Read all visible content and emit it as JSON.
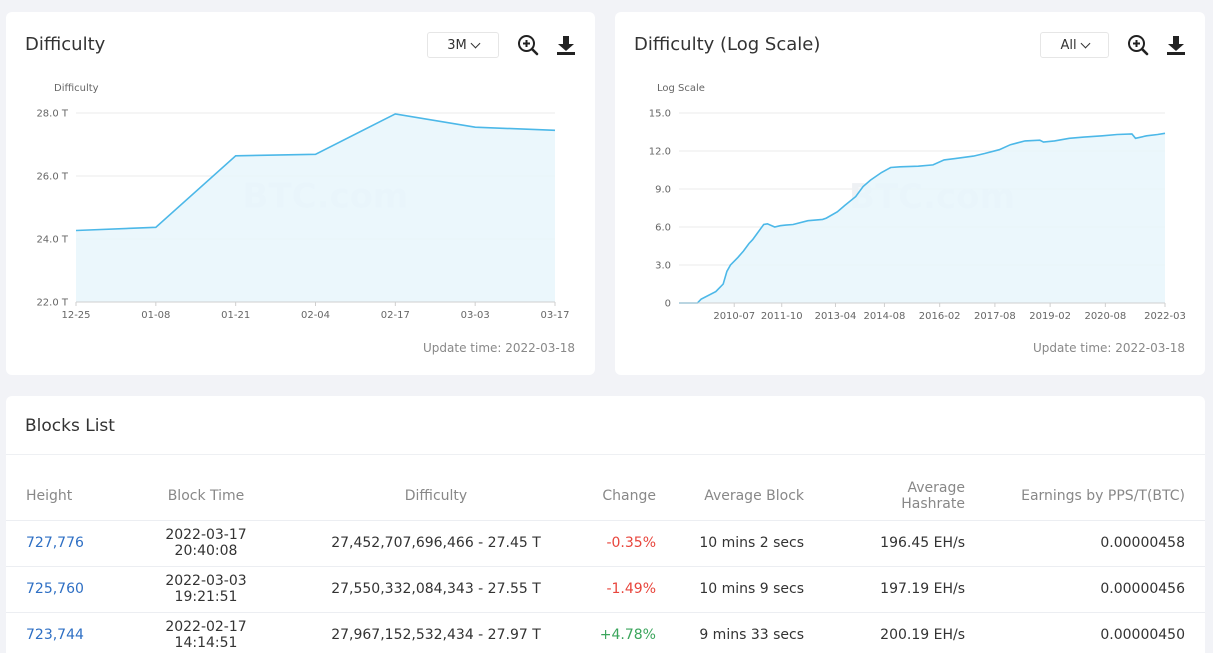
{
  "difficulty_card": {
    "title": "Difficulty",
    "range": "3M",
    "update_time": "Update time: 2022-03-18"
  },
  "log_card": {
    "title": "Difficulty (Log Scale)",
    "range": "All",
    "update_time": "Update time: 2022-03-18"
  },
  "watermark": "BTC.com",
  "chart_data": [
    {
      "type": "area",
      "title": "Difficulty",
      "ylabel": "Difficulty",
      "xlabel": "",
      "categories": [
        "12-25",
        "01-08",
        "01-21",
        "02-04",
        "02-17",
        "03-03",
        "03-17"
      ],
      "x": [
        0,
        1,
        2,
        3,
        4,
        5,
        6
      ],
      "values": [
        24.27,
        24.37,
        26.64,
        26.69,
        27.97,
        27.55,
        27.45
      ],
      "y_ticks": [
        "22.0 T",
        "24.0 T",
        "26.0 T",
        "28.0 T"
      ],
      "y_tick_values": [
        22,
        24,
        26,
        28
      ],
      "ylim": [
        22,
        28
      ],
      "grid": true,
      "color": "#4cb8e8",
      "fill": "#e8f6fc"
    },
    {
      "type": "area",
      "title": "Difficulty (Log Scale)",
      "ylabel": "Log Scale",
      "xlabel": "",
      "categories": [
        "2010-07",
        "2011-10",
        "2013-04",
        "2014-08",
        "2016-02",
        "2017-08",
        "2019-02",
        "2020-08",
        "2022-03"
      ],
      "x": [
        2009.0,
        2009.5,
        2009.6,
        2010.0,
        2010.1,
        2010.2,
        2010.3,
        2010.4,
        2010.6,
        2010.75,
        2010.9,
        2011.0,
        2011.1,
        2011.3,
        2011.4,
        2011.6,
        2011.75,
        2011.9,
        2012.1,
        2012.5,
        2012.9,
        2013.0,
        2013.3,
        2013.5,
        2013.8,
        2014.0,
        2014.2,
        2014.5,
        2014.75,
        2015.0,
        2015.5,
        2015.9,
        2016.2,
        2016.5,
        2017.0,
        2017.3,
        2017.7,
        2018.0,
        2018.4,
        2018.8,
        2018.9,
        2019.2,
        2019.6,
        2020.0,
        2020.5,
        2020.9,
        2021.3,
        2021.4,
        2021.7,
        2022.0,
        2022.2
      ],
      "values": [
        0,
        0,
        0.3,
        0.9,
        1.2,
        1.5,
        2.5,
        3.0,
        3.6,
        4.1,
        4.7,
        5.0,
        5.4,
        6.2,
        6.25,
        6.0,
        6.1,
        6.15,
        6.2,
        6.5,
        6.6,
        6.7,
        7.2,
        7.7,
        8.4,
        9.2,
        9.7,
        10.3,
        10.7,
        10.75,
        10.8,
        10.9,
        11.3,
        11.4,
        11.6,
        11.8,
        12.1,
        12.5,
        12.8,
        12.85,
        12.7,
        12.8,
        13.0,
        13.1,
        13.2,
        13.3,
        13.35,
        13.0,
        13.2,
        13.3,
        13.4
      ],
      "y_ticks": [
        "0",
        "3.0",
        "6.0",
        "9.0",
        "12.0",
        "15.0"
      ],
      "y_tick_values": [
        0,
        3,
        6,
        9,
        12,
        15
      ],
      "ylim": [
        0,
        15
      ],
      "xlim": [
        2009.0,
        2022.2
      ],
      "x_tick_values": [
        2010.5,
        2011.79,
        2013.25,
        2014.58,
        2016.08,
        2017.58,
        2019.08,
        2020.58,
        2022.2
      ],
      "grid": true,
      "color": "#4cb8e8",
      "fill": "#e8f6fc"
    }
  ],
  "blocks": {
    "title": "Blocks List",
    "columns": [
      "Height",
      "Block Time",
      "Difficulty",
      "Change",
      "Average Block",
      "Average Hashrate",
      "Earnings by PPS/T(BTC)"
    ],
    "rows": [
      {
        "height": "727,776",
        "time": "2022-03-17 20:40:08",
        "difficulty": "27,452,707,696,466 - 27.45 T",
        "change": "-0.35%",
        "avg_block": "10 mins 2 secs",
        "hashrate": "196.45 EH/s",
        "earnings": "0.00000458"
      },
      {
        "height": "725,760",
        "time": "2022-03-03 19:21:51",
        "difficulty": "27,550,332,084,343 - 27.55 T",
        "change": "-1.49%",
        "avg_block": "10 mins 9 secs",
        "hashrate": "197.19 EH/s",
        "earnings": "0.00000456"
      },
      {
        "height": "723,744",
        "time": "2022-02-17 14:14:51",
        "difficulty": "27,967,152,532,434 - 27.97 T",
        "change": "+4.78%",
        "avg_block": "9 mins 33 secs",
        "hashrate": "200.19 EH/s",
        "earnings": "0.00000450"
      }
    ]
  },
  "colors": {
    "link": "#2e6fc4",
    "negative": "#e8453c",
    "positive": "#3ba55c"
  }
}
